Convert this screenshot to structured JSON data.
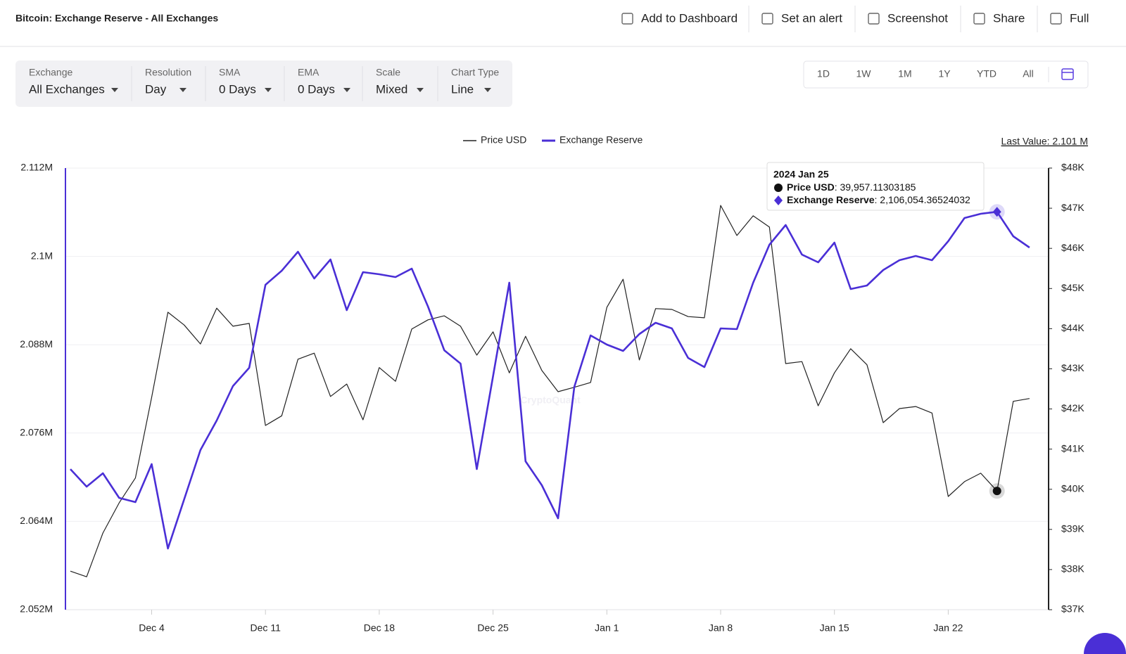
{
  "header": {
    "title": "Bitcoin: Exchange Reserve - All Exchanges",
    "actions": [
      "Add to Dashboard",
      "Set an alert",
      "Screenshot",
      "Share",
      "Full"
    ]
  },
  "filters": [
    {
      "label": "Exchange",
      "value": "All Exchanges"
    },
    {
      "label": "Resolution",
      "value": "Day"
    },
    {
      "label": "SMA",
      "value": "0 Days"
    },
    {
      "label": "EMA",
      "value": "0 Days"
    },
    {
      "label": "Scale",
      "value": "Mixed"
    },
    {
      "label": "Chart Type",
      "value": "Line"
    }
  ],
  "range_buttons": [
    "1D",
    "1W",
    "1M",
    "1Y",
    "YTD",
    "All"
  ],
  "chart_data": {
    "type": "line",
    "last_value": "Last Value: 2.101 M",
    "watermark": "CryptoQuant",
    "grid": true,
    "legend": "top",
    "x": [
      null,
      null,
      null,
      null,
      null,
      "Dec 4",
      null,
      null,
      null,
      null,
      null,
      null,
      "Dec 11",
      null,
      null,
      null,
      null,
      null,
      null,
      "Dec 18",
      null,
      null,
      null,
      null,
      null,
      null,
      "Dec 25",
      null,
      null,
      null,
      null,
      null,
      null,
      "Jan 1",
      null,
      null,
      null,
      null,
      null,
      null,
      "Jan 8",
      null,
      null,
      null,
      null,
      null,
      null,
      "Jan 15",
      null,
      null,
      null,
      null,
      null,
      null,
      "Jan 22",
      null,
      null,
      null,
      null,
      null
    ],
    "series": [
      {
        "name": "Price USD",
        "color": "#222222",
        "axis": "y2",
        "values": [
          37960,
          37820,
          38910,
          39660,
          40280,
          42290,
          44410,
          44090,
          43620,
          44510,
          44060,
          44130,
          41590,
          41830,
          43240,
          43390,
          42310,
          42620,
          41730,
          43030,
          42690,
          43990,
          44220,
          44320,
          44060,
          43340,
          43920,
          42900,
          43810,
          42960,
          42430,
          42540,
          42660,
          44530,
          45230,
          43220,
          44500,
          44480,
          44300,
          44270,
          47070,
          46320,
          46810,
          46530,
          43130,
          43180,
          42080,
          42900,
          43500,
          43100,
          41660,
          42010,
          42060,
          41900,
          39820,
          40190,
          40400,
          39957.11303185,
          42190,
          42260
        ]
      },
      {
        "name": "Exchange Reserve",
        "color": "#4a2fd6",
        "values": [
          2071100,
          2068720,
          2070535,
          2067190,
          2066620,
          2071780,
          2060310,
          2067000,
          2073690,
          2077700,
          2082380,
          2084870,
          2096140,
          2098050,
          2100630,
          2097000,
          2099580,
          2092700,
          2097860,
          2097570,
          2097190,
          2098340,
          2093180,
          2087250,
          2085440,
          2071110,
          2083720,
          2096430,
          2072160,
          2068910,
          2064420,
          2082290,
          2089260,
          2088020,
          2087160,
          2089450,
          2090980,
          2090220,
          2086200,
          2084960,
          2090220,
          2090120,
          2096430,
          2101590,
          2104260,
          2100250,
          2099200,
          2101870,
          2095570,
          2096040,
          2098150,
          2099480,
          2100060,
          2099480,
          2102060,
          2105220,
          2105790,
          2106054.36524032,
          2102730,
          2101200
        ]
      }
    ],
    "ylim": [
      2052000,
      2112000
    ],
    "yticks": [
      {
        "value": 2052000,
        "label": "2.052M"
      },
      {
        "value": 2064000,
        "label": "2.064M"
      },
      {
        "value": 2076000,
        "label": "2.076M"
      },
      {
        "value": 2088000,
        "label": "2.088M"
      },
      {
        "value": 2100000,
        "label": "2.1M"
      },
      {
        "value": 2112000,
        "label": "2.112M"
      }
    ],
    "y2lim": [
      37000,
      48000
    ],
    "y2ticks": [
      {
        "value": 37000,
        "label": "$37K"
      },
      {
        "value": 38000,
        "label": "$38K"
      },
      {
        "value": 39000,
        "label": "$39K"
      },
      {
        "value": 40000,
        "label": "$40K"
      },
      {
        "value": 41000,
        "label": "$41K"
      },
      {
        "value": 42000,
        "label": "$42K"
      },
      {
        "value": 43000,
        "label": "$43K"
      },
      {
        "value": 44000,
        "label": "$44K"
      },
      {
        "value": 45000,
        "label": "$45K"
      },
      {
        "value": 46000,
        "label": "$46K"
      },
      {
        "value": 47000,
        "label": "$47K"
      },
      {
        "value": 48000,
        "label": "$48K"
      }
    ],
    "tooltip": {
      "index": 57,
      "date": "2024 Jan 25",
      "rows": [
        {
          "label": "Price USD",
          "value": ": 39,957.11303185"
        },
        {
          "label": "Exchange Reserve",
          "value": ": 2,106,054.36524032"
        }
      ]
    }
  }
}
